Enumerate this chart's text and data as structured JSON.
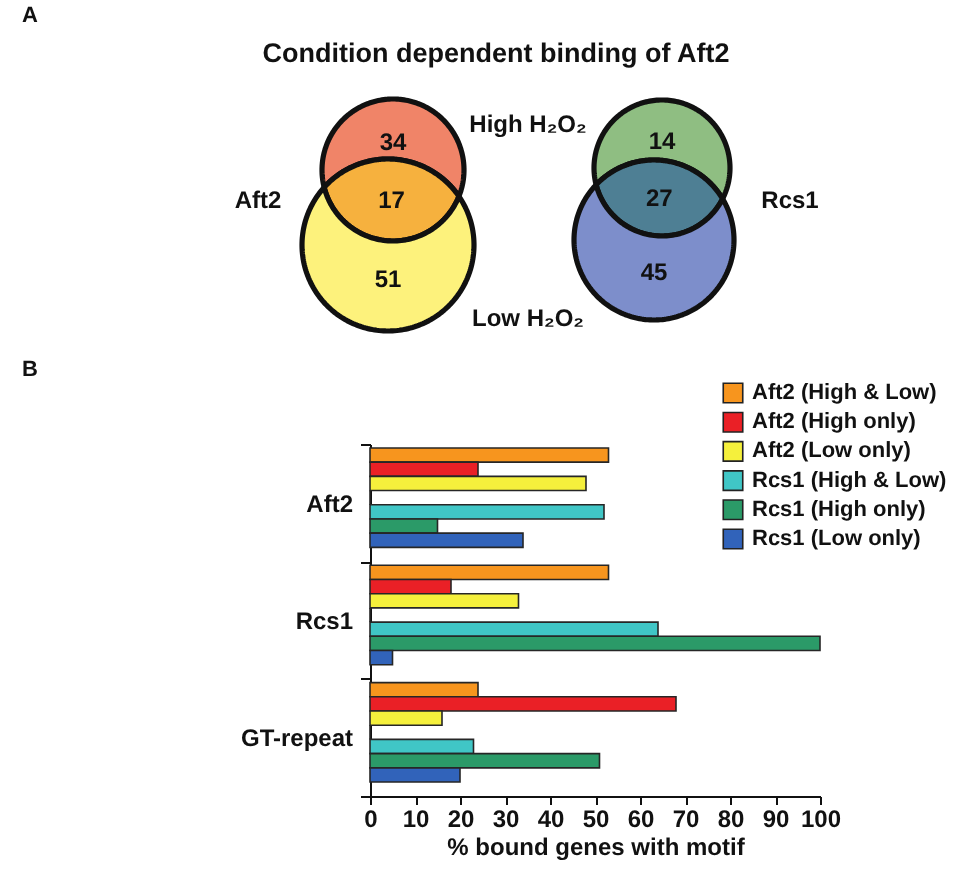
{
  "chart_data": [
    {
      "type": "other",
      "title": "Condition dependent binding of Aft2",
      "annotations": [
        "A"
      ],
      "categories": [
        "Aft2",
        "Rcs1"
      ],
      "data_labels": true,
      "series": [
        {
          "name": "High H₂O₂",
          "values": [
            34,
            14
          ],
          "colors": [
            "#f08468",
            "#8fbe82"
          ]
        },
        {
          "values": [
            17,
            27
          ],
          "colors": [
            "#f6b13e",
            "#4e7f94"
          ]
        },
        {
          "name": "Low H₂O₂",
          "values": [
            51,
            45
          ],
          "colors": [
            "#fdf27c",
            "#7d8ecb"
          ]
        }
      ]
    },
    {
      "type": "bar",
      "orientation": "horizontal",
      "annotations": [
        "B"
      ],
      "categories": [
        "Aft2",
        "Rcs1",
        "GT-repeat"
      ],
      "xlabel": "% bound genes with motif",
      "xlim": [
        0,
        100
      ],
      "xticks": [
        0,
        10,
        20,
        30,
        40,
        50,
        60,
        70,
        80,
        90,
        100
      ],
      "legend": "top right",
      "series": [
        {
          "name": "Aft2 (High & Low)",
          "color": "#f7951e",
          "values": [
            53,
            53,
            24
          ]
        },
        {
          "name": "Aft2 (High only)",
          "color": "#ea2026",
          "values": [
            24,
            18,
            68
          ]
        },
        {
          "name": "Aft2 (Low only)",
          "color": "#f5f03c",
          "values": [
            48,
            33,
            16
          ]
        },
        {
          "color": "#333333",
          "values": [
            0,
            0,
            0
          ]
        },
        {
          "name": "Rcs1 (High & Low)",
          "color": "#40c6c6",
          "values": [
            52,
            64,
            23
          ]
        },
        {
          "name": "Rcs1 (High only)",
          "color": "#2b9a68",
          "values": [
            15,
            100,
            51
          ]
        },
        {
          "name": "Rcs1 (Low only)",
          "color": "#3163ba",
          "values": [
            34,
            5,
            20
          ]
        }
      ]
    }
  ]
}
